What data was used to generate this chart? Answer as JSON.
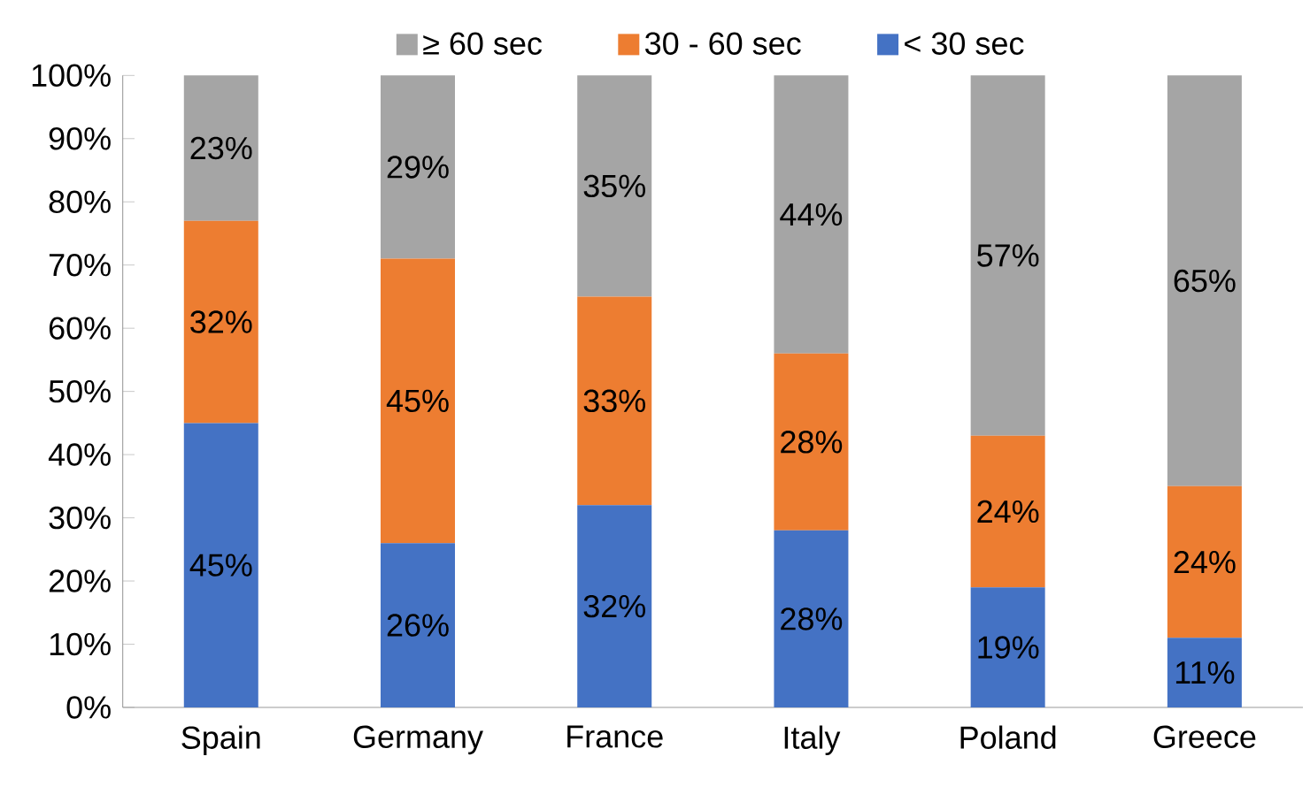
{
  "chart_data": {
    "type": "bar",
    "stacked": true,
    "categories": [
      "Spain",
      "Germany",
      "France",
      "Italy",
      "Poland",
      "Greece"
    ],
    "series": [
      {
        "name": "< 30 sec",
        "color": "#4472c4",
        "values": [
          45,
          26,
          32,
          28,
          19,
          11
        ],
        "value_labels": [
          "45%",
          "26%",
          "32%",
          "28%",
          "19%",
          "11%"
        ]
      },
      {
        "name": "30 - 60 sec",
        "color": "#ed7d31",
        "values": [
          32,
          45,
          33,
          28,
          24,
          24
        ],
        "value_labels": [
          "32%",
          "45%",
          "33%",
          "28%",
          "24%",
          "24%"
        ]
      },
      {
        "name": "≥ 60 sec",
        "color": "#a5a5a5",
        "values": [
          23,
          29,
          35,
          44,
          57,
          65
        ],
        "value_labels": [
          "23%",
          "29%",
          "35%",
          "44%",
          "57%",
          "65%"
        ]
      }
    ],
    "ylim": [
      0,
      100
    ],
    "yticks": [
      {
        "value": 0,
        "label": "0%"
      },
      {
        "value": 10,
        "label": "10%"
      },
      {
        "value": 20,
        "label": "20%"
      },
      {
        "value": 30,
        "label": "30%"
      },
      {
        "value": 40,
        "label": "40%"
      },
      {
        "value": 50,
        "label": "50%"
      },
      {
        "value": 60,
        "label": "60%"
      },
      {
        "value": 70,
        "label": "70%"
      },
      {
        "value": 80,
        "label": "80%"
      },
      {
        "value": 90,
        "label": "90%"
      },
      {
        "value": 100,
        "label": "100%"
      }
    ],
    "legend": "top",
    "grid": false
  }
}
